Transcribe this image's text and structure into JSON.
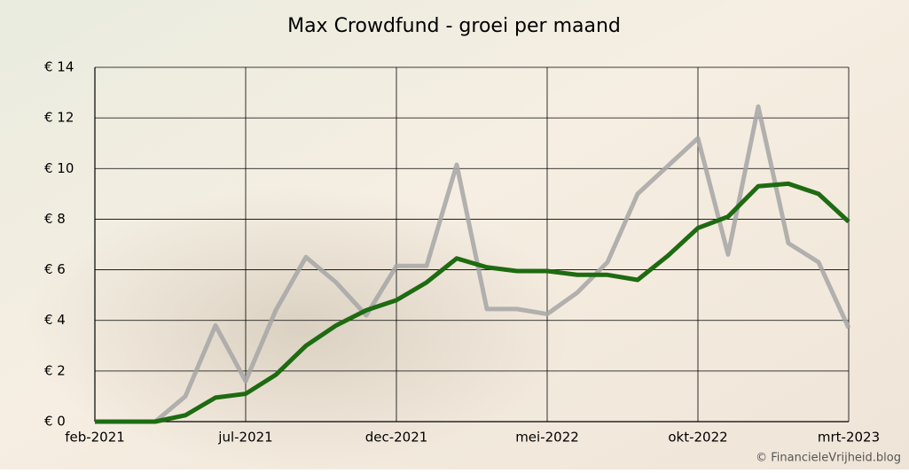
{
  "chart_data": {
    "type": "line",
    "title": "Max Crowdfund - groei per maand",
    "categories": [
      "feb-2021",
      null,
      null,
      null,
      null,
      "jul-2021",
      null,
      null,
      null,
      null,
      "dec-2021",
      null,
      null,
      null,
      null,
      "mei-2022",
      null,
      null,
      null,
      null,
      "okt-2022",
      null,
      null,
      null,
      null,
      "mrt-2023"
    ],
    "series": [
      {
        "color": "#a6a6a6",
        "values": [
          0,
          0,
          0,
          1.0,
          3.8,
          1.6,
          4.4,
          6.5,
          5.5,
          4.2,
          6.15,
          6.15,
          10.15,
          4.45,
          4.45,
          4.25,
          5.1,
          6.3,
          9.0,
          10.1,
          11.2,
          6.6,
          12.45,
          7.05,
          6.3,
          3.7
        ]
      },
      {
        "color": "#1e6b12",
        "values": [
          0,
          0,
          0,
          0.25,
          0.95,
          1.1,
          1.85,
          3.0,
          3.8,
          4.4,
          4.8,
          5.5,
          6.45,
          6.1,
          5.95,
          5.95,
          5.8,
          5.8,
          5.6,
          6.55,
          7.65,
          8.1,
          9.3,
          9.4,
          9.0,
          7.9
        ]
      }
    ],
    "ylim": [
      0,
      14
    ],
    "yticks": [
      {
        "value": 0,
        "label": "€ 0"
      },
      {
        "value": 2,
        "label": "€ 2"
      },
      {
        "value": 4,
        "label": "€ 4"
      },
      {
        "value": 6,
        "label": "€ 6"
      },
      {
        "value": 8,
        "label": "€ 8"
      },
      {
        "value": 10,
        "label": "€ 10"
      },
      {
        "value": 12,
        "label": "€ 12"
      },
      {
        "value": 14,
        "label": "€ 14"
      }
    ],
    "grid": true,
    "credit": "© FinancieleVrijheid.blog"
  }
}
